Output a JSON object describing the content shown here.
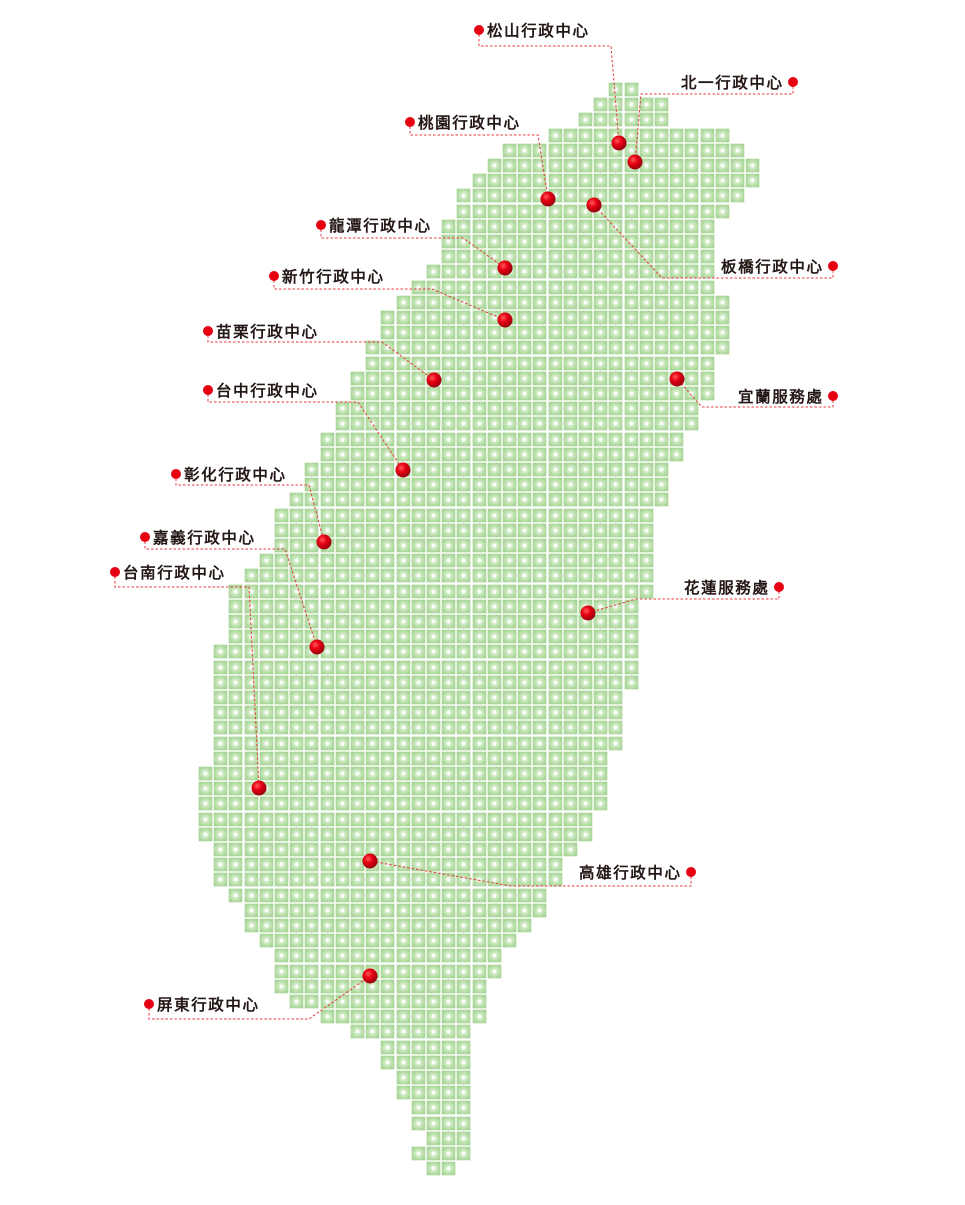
{
  "map": {
    "region": "Taiwan",
    "cell_color": "#a9d699",
    "marker_color": "#e60012",
    "line_color": "#e8383d"
  },
  "markers": [
    {
      "label": "松山行政中心"
    },
    {
      "label": "北一行政中心"
    },
    {
      "label": "桃園行政中心"
    },
    {
      "label": "板橋行政中心"
    },
    {
      "label": "龍潭行政中心"
    },
    {
      "label": "新竹行政中心"
    },
    {
      "label": "苗栗行政中心"
    },
    {
      "label": "宜蘭服務處"
    },
    {
      "label": "台中行政中心"
    },
    {
      "label": "彰化行政中心"
    },
    {
      "label": "嘉義行政中心"
    },
    {
      "label": "台南行政中心"
    },
    {
      "label": "花蓮服務處"
    },
    {
      "label": "高雄行政中心"
    },
    {
      "label": "屏東行政中心"
    }
  ]
}
